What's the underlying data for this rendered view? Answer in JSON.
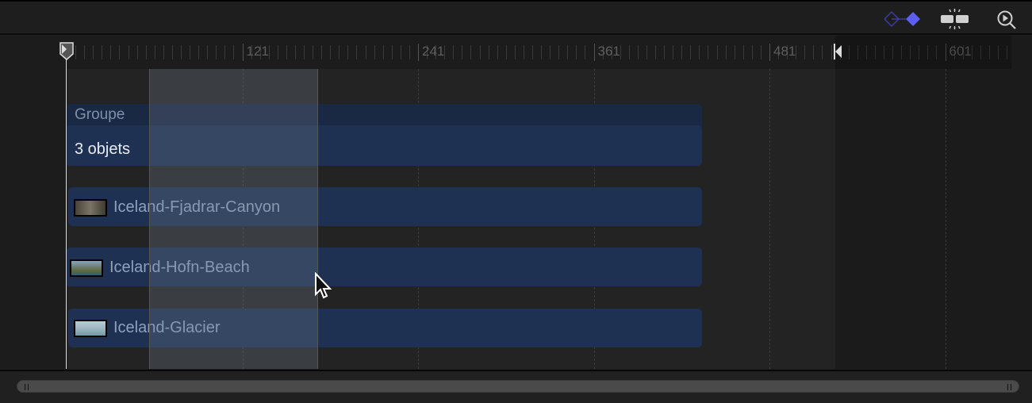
{
  "toolbar": {
    "keyframe_icon": "keyframe-diamond-icon",
    "snap_icon": "snapping-icon",
    "zoom_icon": "zoom-to-playhead-icon",
    "accent_color": "#5b5ef0"
  },
  "ruler": {
    "labels": [
      "121",
      "241",
      "361",
      "481",
      "601"
    ],
    "playhead_frame": 1,
    "out_point_frame": 528
  },
  "group": {
    "title": "Groupe",
    "count_label": "3 objets"
  },
  "layers": [
    {
      "name": "Iceland-Fjadrar-Canyon"
    },
    {
      "name": "Iceland-Hofn-Beach"
    },
    {
      "name": "Iceland-Glacier"
    }
  ],
  "colors": {
    "clip": "#1e3152",
    "label": "#8ea2c0"
  }
}
